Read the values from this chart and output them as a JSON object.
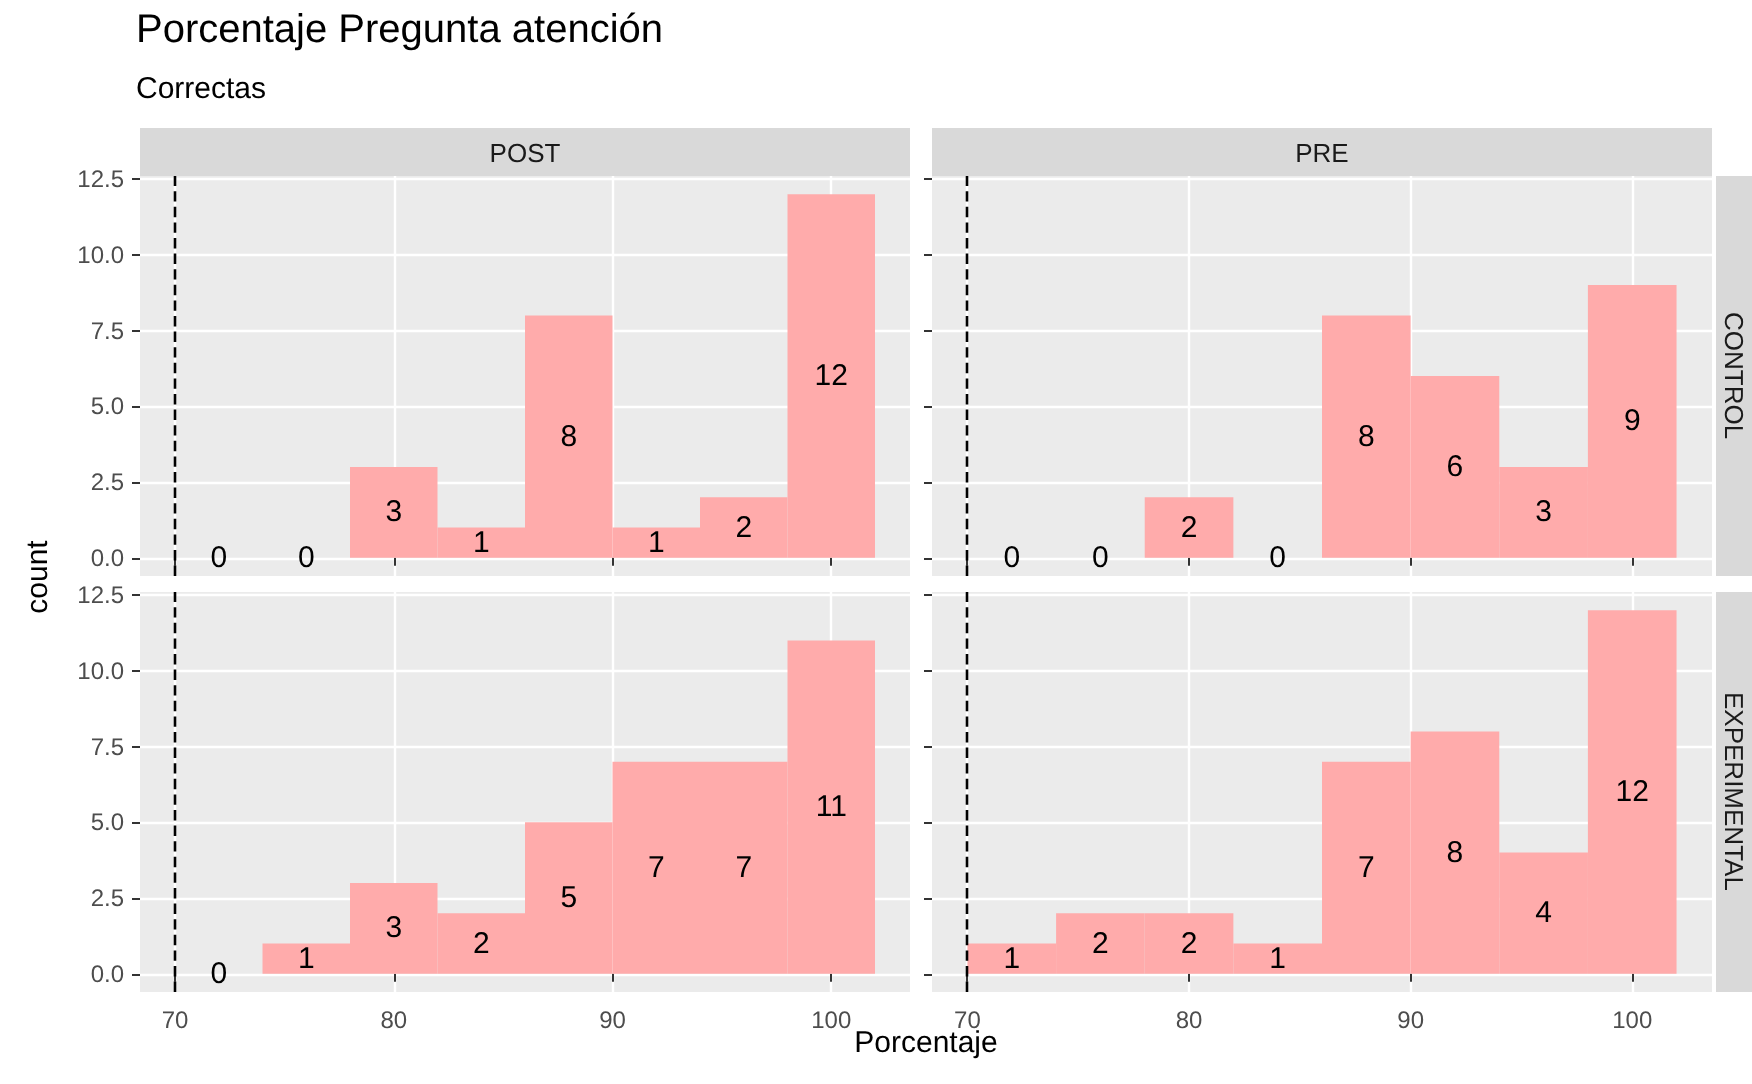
{
  "chart_data": [
    {
      "type": "histogram",
      "title": "Porcentaje Pregunta atención",
      "subtitle": "Correctas",
      "ylabel": "count",
      "annotations": [
        "POST"
      ],
      "bins": [
        70,
        74,
        78,
        82,
        86,
        90,
        94,
        98,
        102
      ],
      "values": [
        0,
        0,
        3,
        1,
        8,
        1,
        2,
        12
      ],
      "color": "#ffabab",
      "xlim": [
        68.4,
        103.6
      ],
      "ylim": [
        -0.6,
        12.6
      ],
      "xticks": [
        70,
        80,
        90,
        100
      ],
      "yticks": [
        {
          "value": 0,
          "label": "0.0"
        },
        {
          "value": 2.5,
          "label": "2.5"
        },
        {
          "value": 5,
          "label": "5.0"
        },
        {
          "value": 7.5,
          "label": "7.5"
        },
        {
          "value": 10,
          "label": "10.0"
        },
        {
          "value": 12.5,
          "label": "12.5"
        }
      ],
      "grid": true,
      "data_labels": true,
      "tick_labels": "y",
      "ref_lines": [
        {
          "axis": "x",
          "value": 70,
          "line_style": "dashed",
          "color": "#000000"
        }
      ]
    },
    {
      "type": "histogram",
      "annotations": [
        "PRE",
        "CONTROL"
      ],
      "bins": [
        70,
        74,
        78,
        82,
        86,
        90,
        94,
        98,
        102
      ],
      "values": [
        0,
        0,
        2,
        0,
        8,
        6,
        3,
        9
      ],
      "color": "#ffabab",
      "xlim": [
        68.4,
        103.6
      ],
      "ylim": [
        -0.6,
        12.6
      ],
      "xticks": [
        70,
        80,
        90,
        100
      ],
      "yticks": [
        {
          "value": 0,
          "label": null
        },
        {
          "value": 2.5,
          "label": null
        },
        {
          "value": 5,
          "label": null
        },
        {
          "value": 7.5,
          "label": null
        },
        {
          "value": 10,
          "label": null
        },
        {
          "value": 12.5,
          "label": null
        }
      ],
      "grid": true,
      "data_labels": true,
      "tick_labels": false,
      "ref_lines": [
        {
          "axis": "x",
          "value": 70,
          "line_style": "dashed",
          "color": "#000000"
        }
      ]
    },
    {
      "type": "histogram",
      "xlabel": "Porcentaje",
      "bins": [
        70,
        74,
        78,
        82,
        86,
        90,
        94,
        98,
        102
      ],
      "values": [
        0,
        1,
        3,
        2,
        5,
        7,
        7,
        11
      ],
      "color": "#ffabab",
      "xlim": [
        68.4,
        103.6
      ],
      "ylim": [
        -0.6,
        12.6
      ],
      "xticks": [
        70,
        80,
        90,
        100
      ],
      "yticks": [
        {
          "value": 0,
          "label": "0.0"
        },
        {
          "value": 2.5,
          "label": "2.5"
        },
        {
          "value": 5,
          "label": "5.0"
        },
        {
          "value": 7.5,
          "label": "7.5"
        },
        {
          "value": 10,
          "label": "10.0"
        },
        {
          "value": 12.5,
          "label": "12.5"
        }
      ],
      "grid": true,
      "data_labels": true,
      "ref_lines": [
        {
          "axis": "x",
          "value": 70,
          "line_style": "dashed",
          "color": "#000000"
        }
      ]
    },
    {
      "type": "histogram",
      "annotations": [
        "EXPERIMENTAL"
      ],
      "bins": [
        70,
        74,
        78,
        82,
        86,
        90,
        94,
        98,
        102
      ],
      "values": [
        1,
        2,
        2,
        1,
        7,
        8,
        4,
        12
      ],
      "color": "#ffabab",
      "xlim": [
        68.4,
        103.6
      ],
      "ylim": [
        -0.6,
        12.6
      ],
      "xticks": [
        70,
        80,
        90,
        100
      ],
      "yticks": [
        {
          "value": 0,
          "label": null
        },
        {
          "value": 2.5,
          "label": null
        },
        {
          "value": 5,
          "label": null
        },
        {
          "value": 7.5,
          "label": null
        },
        {
          "value": 10,
          "label": null
        },
        {
          "value": 12.5,
          "label": null
        }
      ],
      "grid": true,
      "data_labels": true,
      "tick_labels": "x",
      "ref_lines": [
        {
          "axis": "x",
          "value": 70,
          "line_style": "dashed",
          "color": "#000000"
        }
      ]
    }
  ]
}
